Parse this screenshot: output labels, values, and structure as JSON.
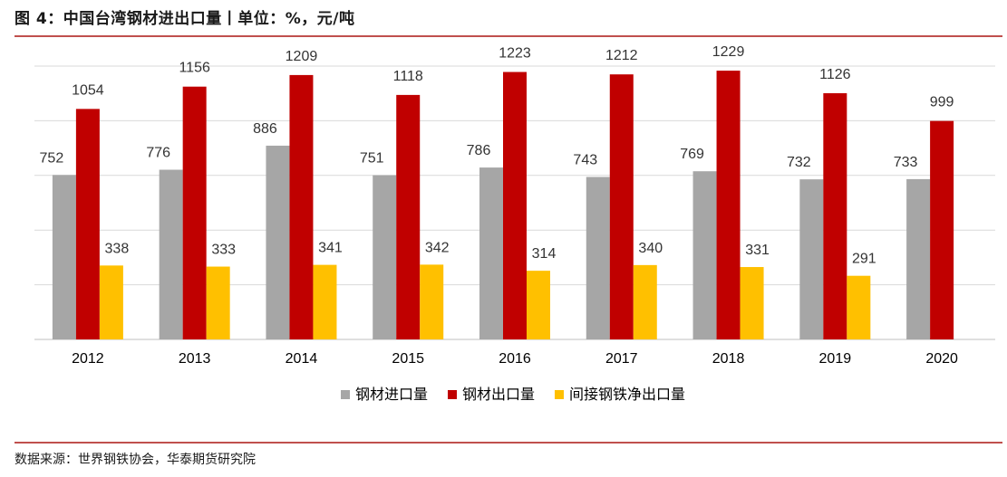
{
  "figure": {
    "title": "图 4：中国台湾钢材进出口量丨单位：%，元/吨",
    "source": "数据来源：世界钢铁协会，华泰期货研究院"
  },
  "chart_data": {
    "type": "bar",
    "categories": [
      "2012",
      "2013",
      "2014",
      "2015",
      "2016",
      "2017",
      "2018",
      "2019",
      "2020"
    ],
    "series": [
      {
        "name": "钢材进口量",
        "color": "#a6a6a6",
        "values": [
          752,
          776,
          886,
          751,
          786,
          743,
          769,
          732,
          733
        ]
      },
      {
        "name": "钢材出口量",
        "color": "#c00000",
        "values": [
          1054,
          1156,
          1209,
          1118,
          1223,
          1212,
          1229,
          1126,
          999
        ]
      },
      {
        "name": "间接钢铁净出口量",
        "color": "#ffc000",
        "values": [
          338,
          333,
          341,
          342,
          314,
          340,
          331,
          291,
          null
        ]
      }
    ],
    "ylim": [
      0,
      1250
    ],
    "grid": true,
    "legend": "bottom",
    "xlabel": "",
    "ylabel": ""
  }
}
